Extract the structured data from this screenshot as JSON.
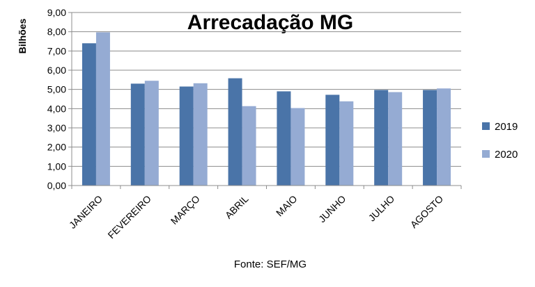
{
  "chart_data": {
    "type": "bar",
    "title": "Arrecadação MG",
    "ylabel": "Bilhões",
    "xlabel": "",
    "ylim": [
      0,
      9
    ],
    "yticks": [
      "0,00",
      "1,00",
      "2,00",
      "3,00",
      "4,00",
      "5,00",
      "6,00",
      "7,00",
      "8,00",
      "9,00"
    ],
    "categories": [
      "JANEIRO",
      "FEVEREIRO",
      "MARÇO",
      "ABRIL",
      "MAIO",
      "JUNHO",
      "JULHO",
      "AGOSTO"
    ],
    "series": [
      {
        "name": "2019",
        "color": "#4A74A8",
        "values": [
          7.4,
          5.3,
          5.15,
          5.58,
          4.9,
          4.72,
          4.97,
          4.97
        ]
      },
      {
        "name": "2020",
        "color": "#95ABD3",
        "values": [
          7.97,
          5.45,
          5.32,
          4.13,
          4.03,
          4.38,
          4.86,
          5.05
        ]
      }
    ],
    "grid": true,
    "legend_position": "right",
    "source": "Fonte: SEF/MG"
  }
}
